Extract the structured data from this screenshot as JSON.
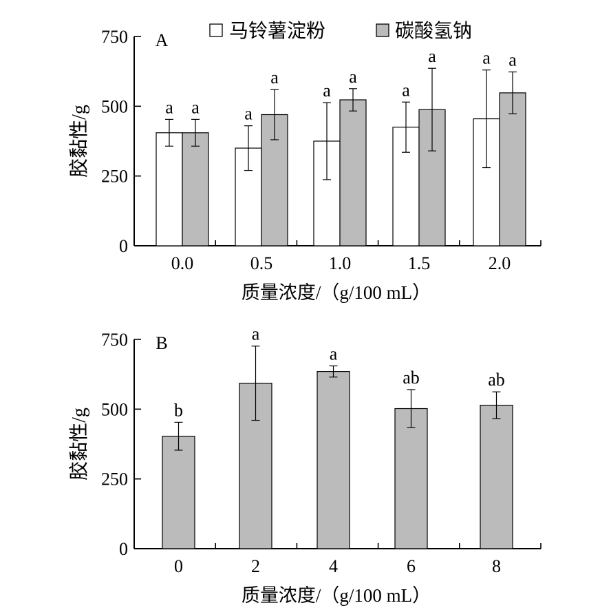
{
  "chart_data": [
    {
      "type": "bar",
      "panel_label": "A",
      "ylabel": "胶黏性/g",
      "xlabel": "质量浓度/（g/100 mL）",
      "categories": [
        "0.0",
        "0.5",
        "1.0",
        "1.5",
        "2.0"
      ],
      "yticks": [
        "0",
        "250",
        "500",
        "750"
      ],
      "ylim": [
        0,
        750
      ],
      "legend_position": "top",
      "series": [
        {
          "name": "马铃薯淀粉",
          "color": "#ffffff",
          "values": [
            405,
            350,
            375,
            425,
            455
          ],
          "errors": [
            48,
            80,
            138,
            90,
            175
          ],
          "labels": [
            "a",
            "a",
            "a",
            "a",
            "a"
          ]
        },
        {
          "name": "碳酸氢钠",
          "color": "#bbbbbb",
          "values": [
            405,
            470,
            523,
            488,
            548
          ],
          "errors": [
            48,
            90,
            40,
            148,
            75
          ],
          "labels": [
            "a",
            "a",
            "a",
            "a",
            "a"
          ]
        }
      ]
    },
    {
      "type": "bar",
      "panel_label": "B",
      "ylabel": "胶黏性/g",
      "xlabel": "质量浓度/（g/100 mL）",
      "categories": [
        "0",
        "2",
        "4",
        "6",
        "8"
      ],
      "yticks": [
        "0",
        "250",
        "500",
        "750"
      ],
      "ylim": [
        0,
        750
      ],
      "series": [
        {
          "color": "#bbbbbb",
          "values": [
            403,
            593,
            635,
            502,
            514
          ],
          "errors": [
            50,
            133,
            20,
            68,
            48
          ],
          "labels": [
            "b",
            "a",
            "a",
            "ab",
            "ab"
          ]
        }
      ]
    }
  ]
}
